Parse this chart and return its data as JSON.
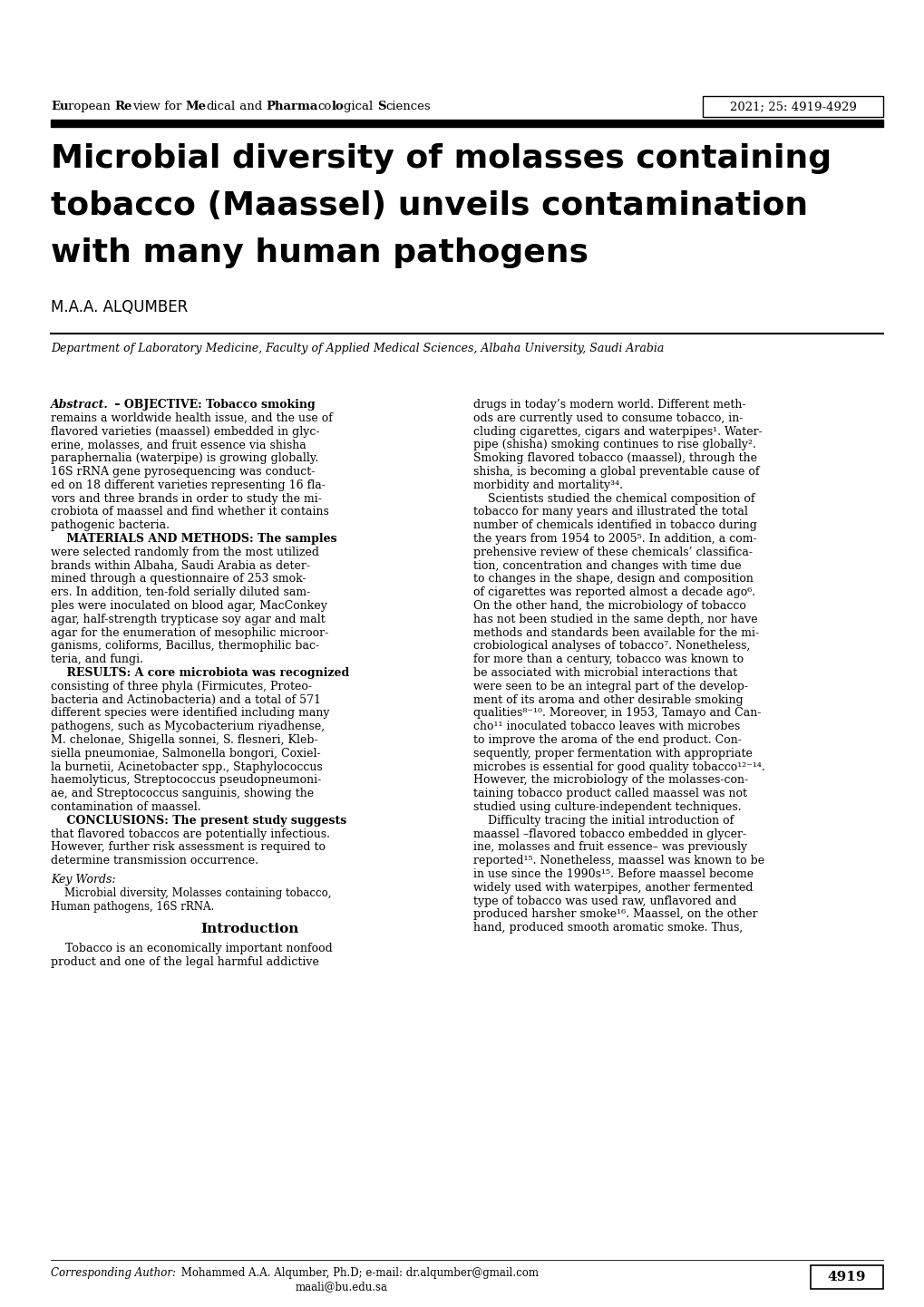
{
  "background_color": "#ffffff",
  "header_journal": "European Review for Medical and Pharmacological Sciences",
  "header_year": "2021; 25: 4919-4929",
  "title_line1": "Microbial diversity of molasses containing",
  "title_line2": "tobacco (Maassel) unveils contamination",
  "title_line3": "with many human pathogens",
  "author": "M.A.A. ALQUMBER",
  "affiliation": "Department of Laboratory Medicine, Faculty of Applied Medical Sciences, Albaha University, Saudi Arabia",
  "footer_corresponding_italic": "Corresponding Author:",
  "footer_corresponding_normal": " Mohammed A.A. Alqumber, Ph.D; e-mail: dr.alqumber@gmail.com",
  "footer_corresponding_email2": "maali@bu.edu.sa",
  "footer_page": "4919",
  "left_abstract_lines": [
    [
      "Abstract.",
      true,
      "italic"
    ],
    [
      " – OBJECTIVE: Tobacco smoking",
      true,
      "normal"
    ],
    [
      "remains a worldwide health issue, and the use of",
      false,
      "normal"
    ],
    [
      "flavored varieties (maassel) embedded in glyc-",
      false,
      "normal"
    ],
    [
      "erine, molasses, and fruit essence via shisha",
      false,
      "normal"
    ],
    [
      "paraphernalia (waterpipe) is growing globally.",
      false,
      "normal"
    ],
    [
      "16S rRNA gene pyrosequencing was conduct-",
      false,
      "normal"
    ],
    [
      "ed on 18 different varieties representing 16 fla-",
      false,
      "normal"
    ],
    [
      "vors and three brands in order to study the mi-",
      false,
      "normal"
    ],
    [
      "crobiota of maassel and find whether it contains",
      false,
      "normal"
    ],
    [
      "pathogenic bacteria.",
      false,
      "normal"
    ],
    [
      "    MATERIALS AND METHODS: The samples",
      true,
      "normal"
    ],
    [
      "were selected randomly from the most utilized",
      false,
      "normal"
    ],
    [
      "brands within Albaha, Saudi Arabia as deter-",
      false,
      "normal"
    ],
    [
      "mined through a questionnaire of 253 smok-",
      false,
      "normal"
    ],
    [
      "ers. In addition, ten-fold serially diluted sam-",
      false,
      "normal"
    ],
    [
      "ples were inoculated on blood agar, MacConkey",
      false,
      "normal"
    ],
    [
      "agar, half-strength trypticase soy agar and malt",
      false,
      "normal"
    ],
    [
      "agar for the enumeration of mesophilic microor-",
      false,
      "normal"
    ],
    [
      "ganisms, coliforms, Bacillus, thermophilic bac-",
      false,
      "normal"
    ],
    [
      "teria, and fungi.",
      false,
      "normal"
    ],
    [
      "    RESULTS: A core microbiota was recognized",
      true,
      "normal"
    ],
    [
      "consisting of three phyla (Firmicutes, Proteo-",
      false,
      "normal"
    ],
    [
      "bacteria and Actinobacteria) and a total of 571",
      false,
      "normal"
    ],
    [
      "different species were identified including many",
      false,
      "normal"
    ],
    [
      "pathogens, such as Mycobacterium riyadhense,",
      false,
      "normal"
    ],
    [
      "M. chelonae, Shigella sonnei, S. flesneri, Kleb-",
      false,
      "normal"
    ],
    [
      "siella pneumoniae, Salmonella bongori, Coxiel-",
      false,
      "normal"
    ],
    [
      "la burnetii, Acinetobacter spp., Staphylococcus",
      false,
      "normal"
    ],
    [
      "haemolyticus, Streptococcus pseudopneumoni-",
      false,
      "normal"
    ],
    [
      "ae, and Streptococcus sanguinis, showing the",
      false,
      "normal"
    ],
    [
      "contamination of maassel.",
      false,
      "normal"
    ],
    [
      "    CONCLUSIONS: The present study suggests",
      true,
      "normal"
    ],
    [
      "that flavored tobaccos are potentially infectious.",
      false,
      "normal"
    ],
    [
      "However, further risk assessment is required to",
      false,
      "normal"
    ],
    [
      "determine transmission occurrence.",
      false,
      "normal"
    ]
  ],
  "right_lines": [
    "drugs in today’s modern world. Different meth-",
    "ods are currently used to consume tobacco, in-",
    "cluding cigarettes, cigars and waterpipes¹. Water-",
    "pipe (shisha) smoking continues to rise globally².",
    "Smoking flavored tobacco (maassel), through the",
    "shisha, is becoming a global preventable cause of",
    "morbidity and mortality³⁴.",
    "    Scientists studied the chemical composition of",
    "tobacco for many years and illustrated the total",
    "number of chemicals identified in tobacco during",
    "the years from 1954 to 2005⁵. In addition, a com-",
    "prehensive review of these chemicals’ classifica-",
    "tion, concentration and changes with time due",
    "to changes in the shape, design and composition",
    "of cigarettes was reported almost a decade ago⁶.",
    "On the other hand, the microbiology of tobacco",
    "has not been studied in the same depth, nor have",
    "methods and standards been available for the mi-",
    "crobiological analyses of tobacco⁷. Nonetheless,",
    "for more than a century, tobacco was known to",
    "be associated with microbial interactions that",
    "were seen to be an integral part of the develop-",
    "ment of its aroma and other desirable smoking",
    "qualities⁸⁻¹⁰. Moreover, in 1953, Tamayo and Can-",
    "cho¹¹ inoculated tobacco leaves with microbes",
    "to improve the aroma of the end product. Con-",
    "sequently, proper fermentation with appropriate",
    "microbes is essential for good quality tobacco¹²⁻¹⁴.",
    "However, the microbiology of the molasses-con-",
    "taining tobacco product called maassel was not",
    "studied using culture-independent techniques.",
    "    Difficulty tracing the initial introduction of",
    "maassel –flavored tobacco embedded in glycer-",
    "ine, molasses and fruit essence– was previously",
    "reported¹⁵. Nonetheless, maassel was known to be",
    "in use since the 1990s¹⁵. Before maassel become",
    "widely used with waterpipes, another fermented",
    "type of tobacco was used raw, unflavored and",
    "produced harsher smoke¹⁶. Maassel, on the other",
    "hand, produced smooth aromatic smoke. Thus,"
  ],
  "keywords_line1": "    Microbial diversity, Molasses containing tobacco,",
  "keywords_line2": "Human pathogens, 16S rRNA.",
  "intro_left_lines": [
    "    Tobacco is an economically important nonfood",
    "product and one of the legal harmful addictive"
  ]
}
